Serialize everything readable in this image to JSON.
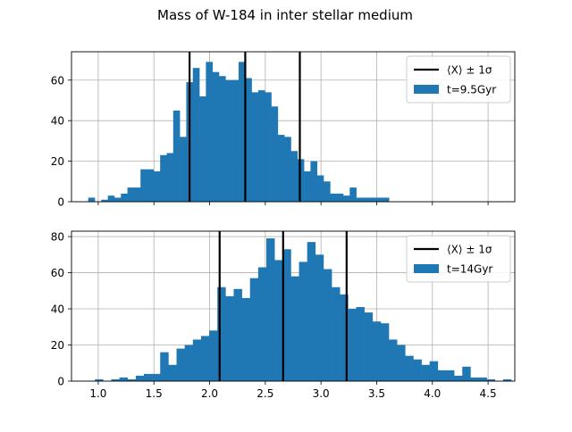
{
  "figure": {
    "title": "Mass of W-184 in inter stellar medium"
  },
  "chart_data": [
    {
      "type": "bar",
      "subtype": "histogram",
      "legend_position": "upper right",
      "grid": true,
      "xlim": [
        0.76,
        4.74
      ],
      "ylim": [
        0,
        74
      ],
      "xticks": [
        1.0,
        1.5,
        2.0,
        2.5,
        3.0,
        3.5,
        4.0,
        4.5
      ],
      "xtick_labels_visible": false,
      "yticks": [
        0,
        20,
        40,
        60
      ],
      "bin_width": 0.0587,
      "bin_start": 0.91,
      "series": [
        {
          "name": "t=9.5Gyr",
          "color": "#1f77b4",
          "values": [
            2,
            0,
            1,
            3,
            2,
            4,
            7,
            7,
            16,
            16,
            15,
            23,
            24,
            45,
            32,
            59,
            66,
            52,
            69,
            64,
            62,
            60,
            60,
            69,
            61,
            54,
            55,
            54,
            47,
            33,
            32,
            25,
            21,
            15,
            20,
            13,
            10,
            4,
            4,
            3,
            7,
            2,
            2,
            2,
            2,
            2
          ]
        }
      ],
      "vlines": {
        "label": "⟨X⟩ ± 1σ",
        "color": "#000000",
        "values": [
          1.82,
          2.32,
          2.81
        ]
      }
    },
    {
      "type": "bar",
      "subtype": "histogram",
      "legend_position": "upper right",
      "grid": true,
      "xlim": [
        0.76,
        4.74
      ],
      "ylim": [
        0,
        83
      ],
      "xticks": [
        1.0,
        1.5,
        2.0,
        2.5,
        3.0,
        3.5,
        4.0,
        4.5
      ],
      "xtick_labels": [
        "1.0",
        "1.5",
        "2.0",
        "2.5",
        "3.0",
        "3.5",
        "4.0",
        "4.5"
      ],
      "yticks": [
        0,
        20,
        40,
        60,
        80
      ],
      "bin_width": 0.0733,
      "bin_start": 0.97,
      "series": [
        {
          "name": "t=14Gyr",
          "color": "#1f77b4",
          "values": [
            1,
            0,
            1,
            2,
            1,
            3,
            4,
            4,
            16,
            9,
            18,
            20,
            23,
            25,
            28,
            52,
            47,
            51,
            46,
            57,
            63,
            79,
            67,
            73,
            58,
            66,
            77,
            70,
            62,
            52,
            48,
            40,
            41,
            38,
            33,
            32,
            23,
            20,
            14,
            12,
            9,
            11,
            6,
            6,
            3,
            8,
            2,
            2,
            1,
            0,
            1
          ]
        }
      ],
      "vlines": {
        "label": "⟨X⟩ ± 1σ",
        "color": "#000000",
        "values": [
          2.09,
          2.66,
          3.23
        ]
      }
    }
  ]
}
